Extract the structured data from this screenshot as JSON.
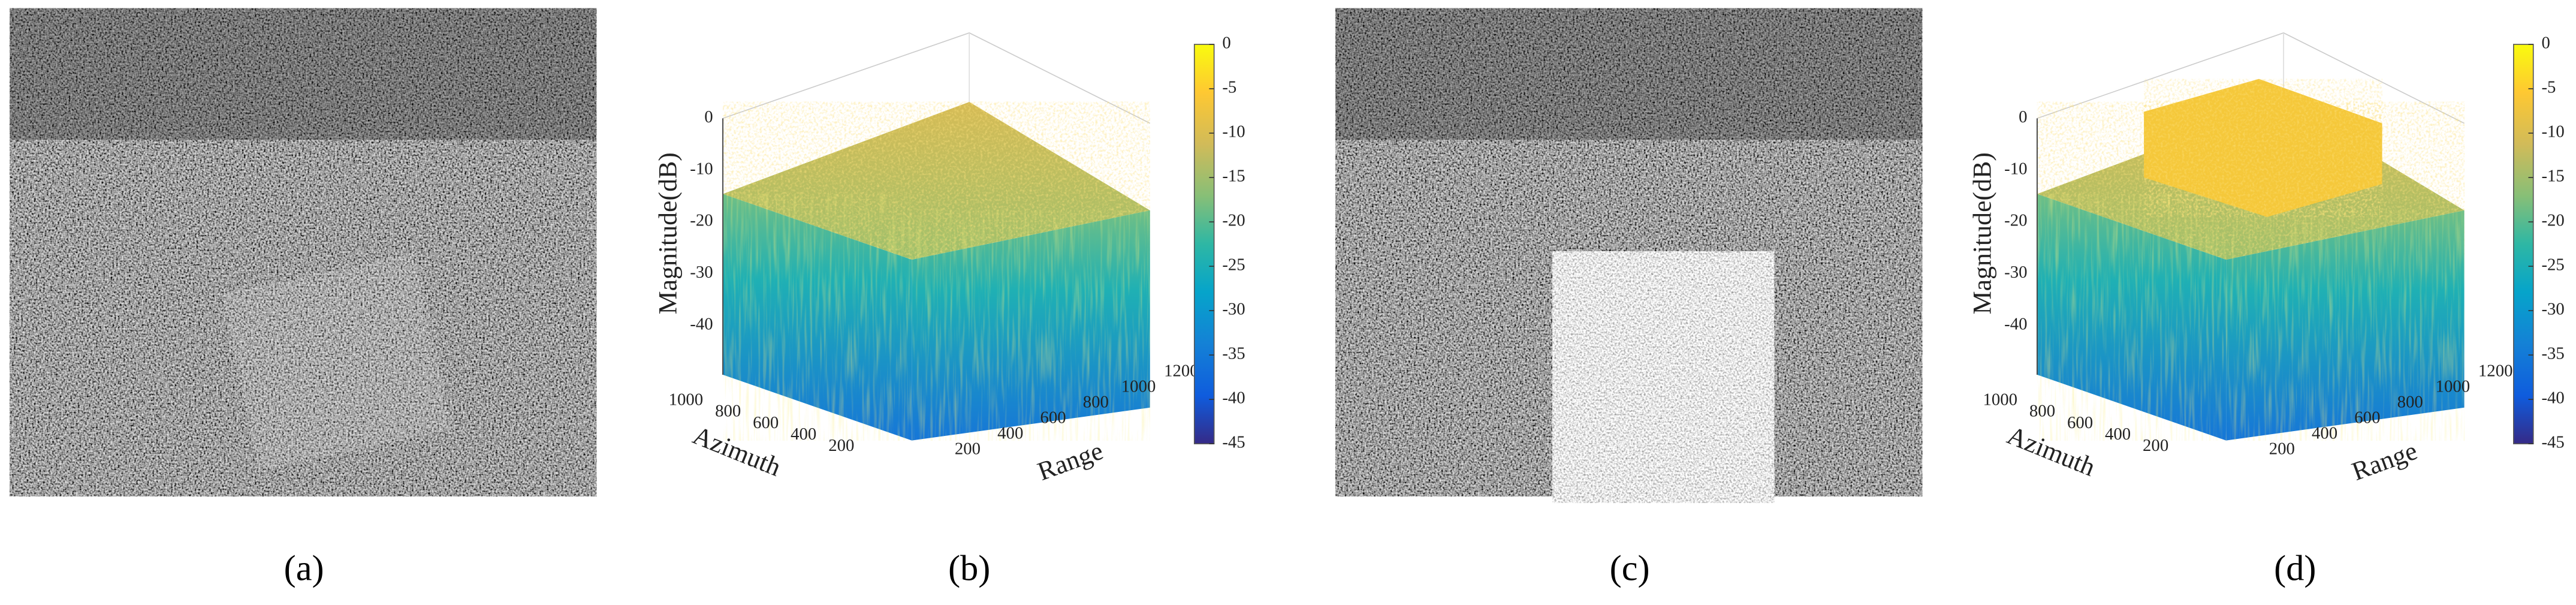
{
  "panels": [
    {
      "caption": "(a)"
    },
    {
      "caption": "(b)",
      "z_label": "Magnitude(dB)",
      "azimuth_label": "Azimuth",
      "range_label": "Range",
      "z_ticks": [
        0,
        -10,
        -20,
        -30,
        -40
      ],
      "azimuth_ticks": [
        1000,
        800,
        600,
        400,
        200
      ],
      "range_ticks": [
        200,
        400,
        600,
        800,
        1000,
        1200
      ],
      "colorbar_ticks": [
        0,
        -5,
        -10,
        -15,
        -20,
        -25,
        -30,
        -35,
        -40,
        -45
      ]
    },
    {
      "caption": "(c)"
    },
    {
      "caption": "(d)",
      "z_label": "Magnitude(dB)",
      "azimuth_label": "Azimuth",
      "range_label": "Range",
      "z_ticks": [
        0,
        -10,
        -20,
        -30,
        -40
      ],
      "azimuth_ticks": [
        1000,
        800,
        600,
        400,
        200
      ],
      "range_ticks": [
        200,
        400,
        600,
        800,
        1000,
        1200
      ],
      "colorbar_ticks": [
        0,
        -5,
        -10,
        -15,
        -20,
        -25,
        -30,
        -35,
        -40,
        -45
      ]
    }
  ]
}
